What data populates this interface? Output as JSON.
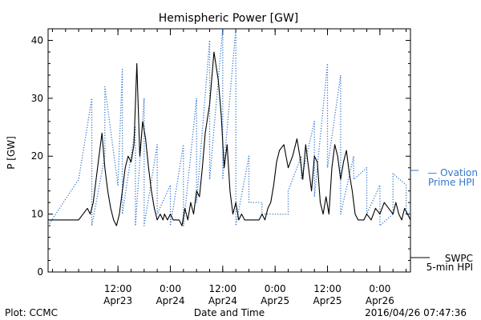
{
  "chart_data": {
    "type": "line",
    "title": "Hemispheric Power [GW]",
    "xlabel": "Date and Time",
    "ylabel": "P [GW]",
    "ylim": [
      0,
      42
    ],
    "xlim": [
      "2016-04-22T20:00",
      "2016-04-26T07:00"
    ],
    "y_ticks": [
      0,
      10,
      20,
      30,
      40
    ],
    "x_ticks": [
      {
        "at": "2016-04-23T12:00",
        "time": "12:00",
        "date": "Apr23"
      },
      {
        "at": "2016-04-24T00:00",
        "time": "0:00",
        "date": "Apr24"
      },
      {
        "at": "2016-04-24T12:00",
        "time": "12:00",
        "date": "Apr24"
      },
      {
        "at": "2016-04-25T00:00",
        "time": "0:00",
        "date": "Apr25"
      },
      {
        "at": "2016-04-25T12:00",
        "time": "12:00",
        "date": "Apr25"
      },
      {
        "at": "2016-04-26T00:00",
        "time": "0:00",
        "date": "Apr26"
      }
    ],
    "grid": false,
    "footer_left": "Plot: CCMC",
    "footer_right": "2016/04/26 07:47:36",
    "legend": {
      "ovation_line1": "— Ovation",
      "ovation_line2": "Prime HPI",
      "swpc_line1": "SWPC",
      "swpc_line2": "5-min HPI"
    },
    "series": [
      {
        "name": "SWPC 5-min HPI",
        "color": "#000000",
        "style": "solid",
        "x": [
          "2016-04-22T20:00",
          "2016-04-23T03:00",
          "2016-04-23T04:00",
          "2016-04-23T05:00",
          "2016-04-23T05:40",
          "2016-04-23T06:20",
          "2016-04-23T07:00",
          "2016-04-23T07:40",
          "2016-04-23T08:20",
          "2016-04-23T09:00",
          "2016-04-23T09:40",
          "2016-04-23T10:20",
          "2016-04-23T11:00",
          "2016-04-23T11:40",
          "2016-04-23T12:20",
          "2016-04-23T13:00",
          "2016-04-23T13:40",
          "2016-04-23T14:20",
          "2016-04-23T15:00",
          "2016-04-23T15:40",
          "2016-04-23T16:20",
          "2016-04-23T17:00",
          "2016-04-23T17:40",
          "2016-04-23T18:20",
          "2016-04-23T19:00",
          "2016-04-23T19:40",
          "2016-04-23T20:20",
          "2016-04-23T21:00",
          "2016-04-23T21:40",
          "2016-04-23T22:20",
          "2016-04-23T22:40",
          "2016-04-23T23:20",
          "2016-04-24T00:00",
          "2016-04-24T00:40",
          "2016-04-24T01:20",
          "2016-04-24T02:00",
          "2016-04-24T02:40",
          "2016-04-24T03:20",
          "2016-04-24T04:00",
          "2016-04-24T04:40",
          "2016-04-24T05:20",
          "2016-04-24T06:00",
          "2016-04-24T06:40",
          "2016-04-24T07:20",
          "2016-04-24T08:00",
          "2016-04-24T09:00",
          "2016-04-24T10:00",
          "2016-04-24T11:00",
          "2016-04-24T11:40",
          "2016-04-24T12:20",
          "2016-04-24T13:00",
          "2016-04-24T13:40",
          "2016-04-24T14:20",
          "2016-04-24T15:00",
          "2016-04-24T15:40",
          "2016-04-24T16:20",
          "2016-04-24T17:00",
          "2016-04-24T17:40",
          "2016-04-24T18:20",
          "2016-04-24T19:00",
          "2016-04-24T19:40",
          "2016-04-24T20:20",
          "2016-04-24T21:00",
          "2016-04-24T21:40",
          "2016-04-24T22:20",
          "2016-04-24T23:00",
          "2016-04-24T23:40",
          "2016-04-25T00:20",
          "2016-04-25T01:00",
          "2016-04-25T02:00",
          "2016-04-25T03:00",
          "2016-04-25T04:00",
          "2016-04-25T05:00",
          "2016-04-25T05:40",
          "2016-04-25T06:20",
          "2016-04-25T07:00",
          "2016-04-25T07:40",
          "2016-04-25T08:20",
          "2016-04-25T09:00",
          "2016-04-25T09:40",
          "2016-04-25T10:20",
          "2016-04-25T11:00",
          "2016-04-25T11:40",
          "2016-04-25T12:20",
          "2016-04-25T13:00",
          "2016-04-25T13:40",
          "2016-04-25T14:20",
          "2016-04-25T15:00",
          "2016-04-25T15:40",
          "2016-04-25T16:20",
          "2016-04-25T17:00",
          "2016-04-25T17:40",
          "2016-04-25T18:20",
          "2016-04-25T19:00",
          "2016-04-25T19:40",
          "2016-04-25T20:20",
          "2016-04-25T21:00",
          "2016-04-25T22:00",
          "2016-04-25T23:00",
          "2016-04-26T00:00",
          "2016-04-26T01:00",
          "2016-04-26T02:00",
          "2016-04-26T03:00",
          "2016-04-26T03:40",
          "2016-04-26T04:20",
          "2016-04-26T05:00",
          "2016-04-26T05:40",
          "2016-04-26T06:20",
          "2016-04-26T07:00"
        ],
        "y": [
          9,
          9,
          10,
          11,
          10,
          12,
          16,
          20,
          24,
          18,
          14,
          11,
          9,
          8,
          10,
          14,
          18,
          20,
          19,
          22,
          36,
          20,
          26,
          23,
          18,
          14,
          11,
          9,
          10,
          9,
          10,
          9,
          10,
          9,
          9,
          9,
          8,
          11,
          9,
          12,
          10,
          14,
          13,
          18,
          24,
          29,
          38,
          33,
          27,
          18,
          22,
          14,
          10,
          12,
          9,
          10,
          9,
          9,
          9,
          9,
          9,
          9,
          10,
          9,
          11,
          12,
          15,
          19,
          21,
          22,
          18,
          20,
          23,
          20,
          16,
          22,
          18,
          14,
          20,
          19,
          12,
          10,
          13,
          10,
          18,
          22,
          20,
          16,
          19,
          21,
          17,
          14,
          10,
          9,
          9,
          9,
          10,
          9,
          11,
          10,
          12,
          11,
          10,
          12,
          10,
          9,
          11,
          10,
          9
        ],
        "note": "approximate trace read from the figure"
      },
      {
        "name": "Ovation Prime HPI",
        "color": "#3377cc",
        "style": "dotted",
        "x": [
          "2016-04-22T20:00",
          "2016-04-23T03:00",
          "2016-04-23T06:00",
          "2016-04-23T06:00",
          "2016-04-23T09:00",
          "2016-04-23T09:00",
          "2016-04-23T12:00",
          "2016-04-23T13:00",
          "2016-04-23T13:00",
          "2016-04-23T16:00",
          "2016-04-23T16:00",
          "2016-04-23T18:00",
          "2016-04-23T18:00",
          "2016-04-23T21:00",
          "2016-04-23T21:00",
          "2016-04-24T00:00",
          "2016-04-24T00:00",
          "2016-04-24T03:00",
          "2016-04-24T03:00",
          "2016-04-24T06:00",
          "2016-04-24T06:00",
          "2016-04-24T09:00",
          "2016-04-24T09:00",
          "2016-04-24T12:00",
          "2016-04-24T12:00",
          "2016-04-24T15:00",
          "2016-04-24T15:00",
          "2016-04-24T18:00",
          "2016-04-24T18:00",
          "2016-04-24T21:00",
          "2016-04-24T21:00",
          "2016-04-25T00:00",
          "2016-04-25T03:00",
          "2016-04-25T03:00",
          "2016-04-25T06:00",
          "2016-04-25T06:00",
          "2016-04-25T09:00",
          "2016-04-25T09:00",
          "2016-04-25T12:00",
          "2016-04-25T12:00",
          "2016-04-25T15:00",
          "2016-04-25T15:00",
          "2016-04-25T18:00",
          "2016-04-25T18:00",
          "2016-04-25T21:00",
          "2016-04-25T21:00",
          "2016-04-26T00:00",
          "2016-04-26T00:00",
          "2016-04-26T03:00",
          "2016-04-26T03:00",
          "2016-04-26T06:00",
          "2016-04-26T06:00",
          "2016-04-26T07:00"
        ],
        "y": [
          8,
          16,
          30,
          8,
          20,
          32,
          15,
          35,
          10,
          25,
          8,
          30,
          8,
          22,
          10,
          15,
          8,
          22,
          8,
          30,
          12,
          40,
          16,
          42,
          16,
          42,
          8,
          20,
          12,
          12,
          10,
          10,
          10,
          14,
          20,
          16,
          26,
          13,
          36,
          18,
          34,
          10,
          20,
          16,
          18,
          10,
          15,
          8,
          10,
          17,
          15,
          10,
          10
        ],
        "note": "approximate trace read from the figure"
      }
    ]
  }
}
